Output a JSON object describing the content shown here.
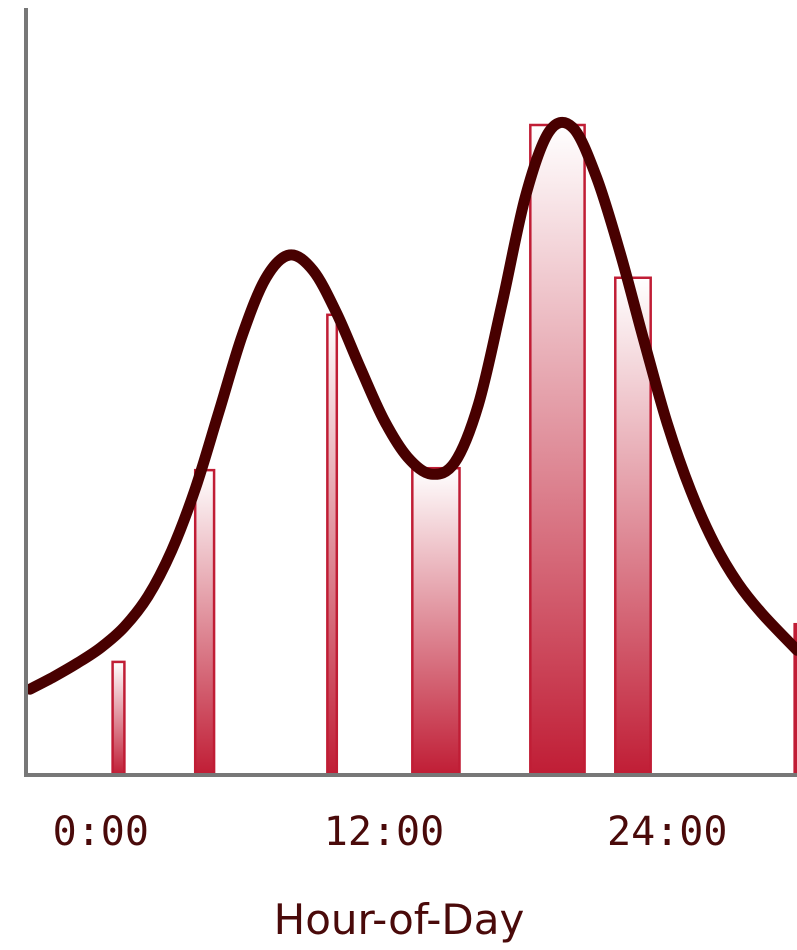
{
  "chart_data": {
    "type": "bar",
    "title": "",
    "xlabel": "Hour-of-Day",
    "ylabel": "",
    "xlim": [
      -3.0,
      29.5
    ],
    "ylim": [
      0,
      100
    ],
    "xticks": [
      {
        "value": 0,
        "label": "0:00"
      },
      {
        "value": 12,
        "label": "12:00"
      },
      {
        "value": 24,
        "label": "24:00"
      }
    ],
    "bars": [
      {
        "start": 0.5,
        "end": 1.0,
        "value": 17.4
      },
      {
        "start": 4.0,
        "end": 4.8,
        "value": 46.9
      },
      {
        "start": 9.6,
        "end": 10.0,
        "value": 70.8
      },
      {
        "start": 13.2,
        "end": 15.2,
        "value": 47.2
      },
      {
        "start": 18.2,
        "end": 20.5,
        "value": 100.0
      },
      {
        "start": 21.8,
        "end": 23.3,
        "value": 76.5
      },
      {
        "start": 29.4,
        "end": 30.2,
        "value": 23.2
      }
    ],
    "density_curve": {
      "x": [
        -3.0,
        -2.0,
        -1.0,
        0.0,
        1.0,
        2.0,
        3.0,
        4.0,
        5.0,
        6.0,
        7.0,
        8.0,
        9.0,
        10.0,
        11.0,
        12.0,
        13.0,
        14.0,
        15.0,
        16.0,
        17.0,
        18.0,
        19.0,
        20.0,
        21.0,
        22.0,
        23.0,
        24.0,
        25.0,
        26.0,
        27.0,
        28.0,
        29.5
      ],
      "y": [
        13.2,
        15.1,
        17.2,
        19.6,
        22.8,
        27.5,
        34.5,
        44.0,
        55.8,
        67.7,
        76.5,
        80.0,
        77.6,
        71.0,
        62.6,
        54.6,
        48.9,
        46.3,
        48.1,
        57.0,
        72.5,
        89.1,
        99.0,
        99.6,
        92.0,
        80.4,
        67.0,
        54.1,
        43.7,
        35.6,
        29.5,
        24.9,
        19.2
      ]
    },
    "grid": false,
    "legend": "none",
    "colors": {
      "bar_fill_bottom": "#c01d35",
      "bar_fill_top": "#ffffff",
      "bar_stroke": "#c01d35",
      "curve": "#480000",
      "axis": "#777777",
      "text": "#4a0a0a"
    }
  }
}
